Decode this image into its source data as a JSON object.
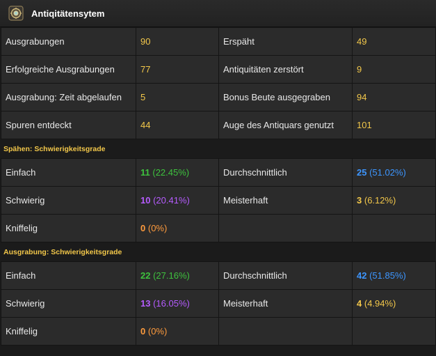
{
  "header": {
    "title": "Antiqitätensytem",
    "icon": "archaeology-compass-icon"
  },
  "stats": [
    {
      "label1": "Ausgrabungen",
      "value1": "90",
      "label2": "Erspäht",
      "value2": "49"
    },
    {
      "label1": "Erfolgreiche Ausgrabungen",
      "value1": "77",
      "label2": "Antiquitäten zerstört",
      "value2": "9"
    },
    {
      "label1": "Ausgrabung: Zeit abgelaufen",
      "value1": "5",
      "label2": "Bonus Beute ausgegraben",
      "value2": "94"
    },
    {
      "label1": "Spuren entdeckt",
      "value1": "44",
      "label2": "Auge des Antiquars genutzt",
      "value2": "101"
    }
  ],
  "spaehen": {
    "title": "Spähen: Schwierigkeitsgrade",
    "easy": {
      "label": "Einfach",
      "count": "11",
      "pct": "(22.45%)"
    },
    "average": {
      "label": "Durchschnittlich",
      "count": "25",
      "pct": "(51.02%)"
    },
    "hard": {
      "label": "Schwierig",
      "count": "10",
      "pct": "(20.41%)"
    },
    "master": {
      "label": "Meisterhaft",
      "count": "3",
      "pct": "(6.12%)"
    },
    "tricky": {
      "label": "Kniffelig",
      "count": "0",
      "pct": "(0%)"
    }
  },
  "ausgrabung": {
    "title": "Ausgrabung: Schwierigkeitsgrade",
    "easy": {
      "label": "Einfach",
      "count": "22",
      "pct": "(27.16%)"
    },
    "average": {
      "label": "Durchschnittlich",
      "count": "42",
      "pct": "(51.85%)"
    },
    "hard": {
      "label": "Schwierig",
      "count": "13",
      "pct": "(16.05%)"
    },
    "master": {
      "label": "Meisterhaft",
      "count": "4",
      "pct": "(4.94%)"
    },
    "tricky": {
      "label": "Kniffelig",
      "count": "0",
      "pct": "(0%)"
    }
  },
  "colors": {
    "value_yellow": "#f2c74a",
    "easy_green": "#3ec23e",
    "average_blue": "#3d96ff",
    "hard_purple": "#b65cff",
    "tricky_orange": "#ff9b3d"
  }
}
